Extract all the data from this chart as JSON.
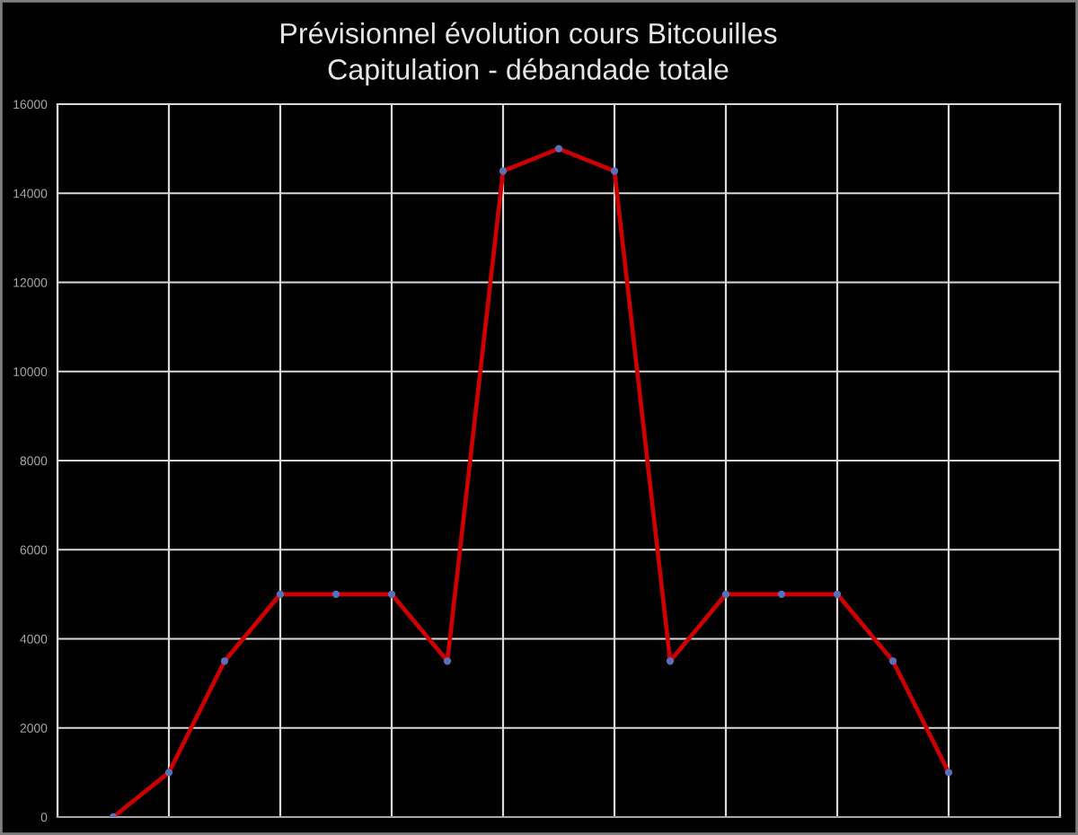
{
  "chart_data": {
    "type": "line",
    "title": "Prévisionnel évolution cours Bitcouilles",
    "subtitle": "Capitulation - débandade totale",
    "categories": [
      null,
      null,
      null,
      null,
      null,
      null,
      null,
      null,
      null,
      null,
      null,
      null,
      null,
      null,
      null,
      null
    ],
    "series": [
      {
        "color": "#cc0000",
        "colors": [
          "#5a6fb8",
          "#5a6fb8",
          "#5a6fb8",
          "#5a6fb8",
          "#5a6fb8",
          "#5a6fb8",
          "#5a6fb8",
          "#5a6fb8",
          "#5a6fb8",
          "#5a6fb8",
          "#5a6fb8",
          "#5a6fb8",
          "#5a6fb8",
          "#5a6fb8",
          "#5a6fb8",
          "#5a6fb8"
        ],
        "values": [
          0,
          1000,
          3500,
          5000,
          5000,
          5000,
          3500,
          14500,
          15000,
          14500,
          3500,
          5000,
          5000,
          5000,
          3500,
          1000
        ]
      }
    ],
    "ylim": [
      0,
      16000
    ],
    "yticks": [
      0,
      2000,
      4000,
      6000,
      8000,
      10000,
      12000,
      14000,
      16000
    ],
    "grid": true,
    "marker": "circle",
    "tick_labels": "y"
  }
}
